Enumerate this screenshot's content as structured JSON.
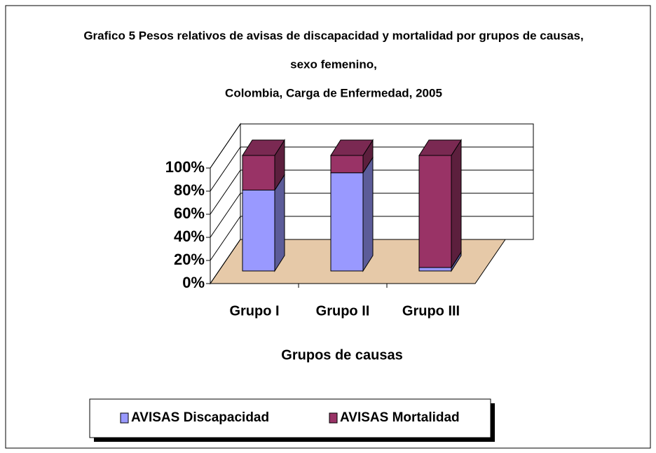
{
  "chart_data": {
    "type": "bar",
    "stacked": true,
    "title": [
      "Grafico 5 Pesos relativos de avisas de discapacidad y mortalidad  por grupos de causas,",
      "sexo femenino,",
      "Colombia, Carga de Enfermedad, 2005"
    ],
    "x_label": "Grupos de causas",
    "categories": [
      "Grupo I",
      "Grupo II",
      "Grupo III"
    ],
    "series": [
      {
        "name": "AVISAS Discapacidad",
        "color": "#9999ff",
        "values": [
          70,
          85,
          3
        ]
      },
      {
        "name": "AVISAS Mortalidad",
        "color": "#993366",
        "values": [
          30,
          15,
          97
        ]
      }
    ],
    "ylim": [
      0,
      100
    ],
    "yticks": [
      {
        "value": 0,
        "label": "0%"
      },
      {
        "value": 20,
        "label": "20%"
      },
      {
        "value": 40,
        "label": "40%"
      },
      {
        "value": 60,
        "label": "60%"
      },
      {
        "value": 80,
        "label": "80%"
      },
      {
        "value": 100,
        "label": "100%"
      }
    ],
    "grid": true,
    "legend": "bottom"
  }
}
